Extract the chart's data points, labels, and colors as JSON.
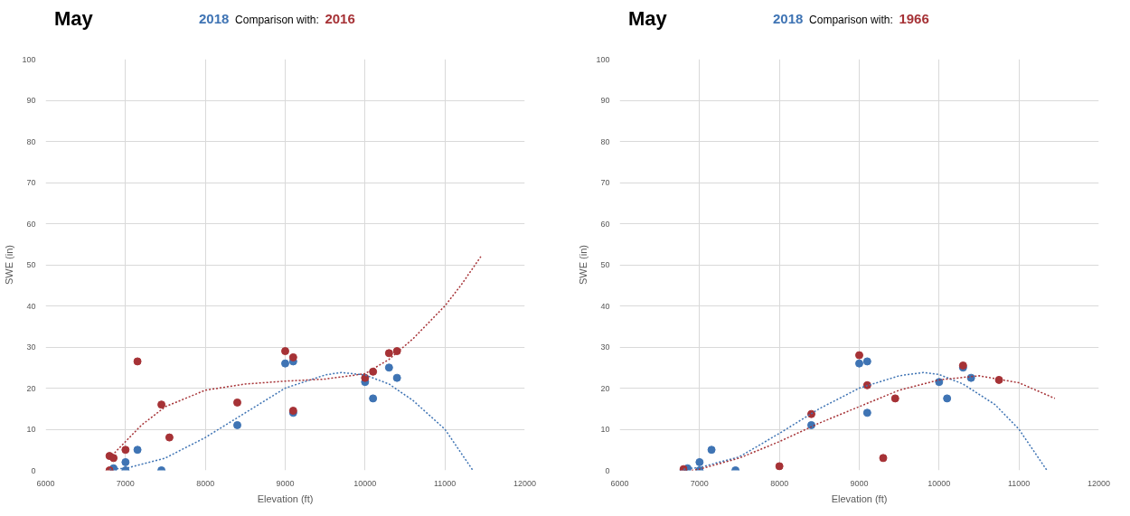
{
  "chart_data": [
    {
      "type": "scatter",
      "title": "May",
      "xlabel": "Elevation (ft)",
      "ylabel": "SWE (in)",
      "xlim": [
        6000,
        12000
      ],
      "xticks": [
        6000,
        7000,
        8000,
        9000,
        10000,
        11000,
        12000
      ],
      "ylim": [
        0,
        100
      ],
      "yticks": [
        0,
        10,
        20,
        30,
        40,
        50,
        60,
        70,
        80,
        90,
        100
      ],
      "grid": true,
      "legend": "top",
      "annotations": [
        "Comparison with:"
      ],
      "series": [
        {
          "name": "2018",
          "marker": "circle",
          "color": "#3f74b4",
          "x": [
            6850,
            7000,
            7000,
            7150,
            7450,
            8400,
            9000,
            9100,
            9100,
            10000,
            10100,
            10300,
            10400
          ],
          "values": [
            0.5,
            2,
            0,
            5,
            0,
            11,
            26,
            26.5,
            14,
            21.5,
            17.5,
            25,
            22.5
          ]
        },
        {
          "name": "2016",
          "marker": "circle",
          "color": "#a63236",
          "x": [
            6800,
            6850,
            6800,
            7000,
            7150,
            7450,
            7550,
            8400,
            9000,
            9100,
            9100,
            10000,
            10100,
            10300,
            10400
          ],
          "values": [
            3.5,
            3,
            0,
            5,
            26.5,
            16,
            8,
            16.5,
            29,
            27.5,
            14.5,
            22.5,
            24,
            28.5,
            29
          ]
        },
        {
          "type": "line",
          "line_style": "dotted",
          "color": "#3f74b4",
          "x": [
            6800,
            7000,
            7500,
            8000,
            8500,
            9000,
            9500,
            9700,
            10000,
            10300,
            10600,
            11000,
            11350
          ],
          "values": [
            0.3,
            0.5,
            3,
            8,
            14,
            20,
            23.2,
            23.8,
            23.2,
            21,
            17,
            10,
            0
          ]
        },
        {
          "type": "line",
          "line_style": "dotted",
          "color": "#a63236",
          "x": [
            6800,
            7000,
            7200,
            7500,
            8000,
            8500,
            9000,
            9500,
            10000,
            10300,
            10600,
            11000,
            11200,
            11450
          ],
          "values": [
            3,
            7,
            11,
            15.5,
            19.5,
            21,
            21.7,
            22.2,
            23.5,
            27,
            32,
            40,
            45,
            52
          ]
        }
      ]
    },
    {
      "type": "scatter",
      "title": "May",
      "xlabel": "Elevation (ft)",
      "ylabel": "SWE (in)",
      "xlim": [
        6000,
        12000
      ],
      "xticks": [
        6000,
        7000,
        8000,
        9000,
        10000,
        11000,
        12000
      ],
      "ylim": [
        0,
        100
      ],
      "yticks": [
        0,
        10,
        20,
        30,
        40,
        50,
        60,
        70,
        80,
        90,
        100
      ],
      "grid": true,
      "legend": "top",
      "annotations": [
        "Comparison with:"
      ],
      "series": [
        {
          "name": "2018",
          "marker": "circle",
          "color": "#3f74b4",
          "x": [
            6800,
            6850,
            7000,
            7000,
            7150,
            7450,
            8400,
            9000,
            9100,
            9100,
            10000,
            10100,
            10300,
            10400
          ],
          "values": [
            0,
            0.5,
            2,
            0,
            5,
            0,
            11,
            26,
            26.5,
            14,
            21.5,
            17.5,
            25,
            22.5
          ]
        },
        {
          "name": "1966",
          "marker": "circle",
          "color": "#a63236",
          "x": [
            6800,
            8000,
            8400,
            9000,
            9100,
            9300,
            9450,
            10300,
            10750
          ],
          "values": [
            0.3,
            1,
            13.7,
            28,
            20.7,
            3,
            17.5,
            25.5,
            22
          ]
        },
        {
          "type": "line",
          "line_style": "dotted",
          "color": "#3f74b4",
          "x": [
            6800,
            7000,
            7500,
            8000,
            8500,
            9000,
            9500,
            9800,
            10000,
            10300,
            10700,
            11000,
            11350
          ],
          "values": [
            0.3,
            0.7,
            3.3,
            9,
            15,
            20,
            23,
            23.8,
            23.3,
            21,
            16,
            10,
            0
          ]
        },
        {
          "type": "line",
          "line_style": "dotted",
          "color": "#a63236",
          "x": [
            6900,
            7000,
            7500,
            8000,
            8500,
            9000,
            9500,
            10000,
            10500,
            11000,
            11450
          ],
          "values": [
            0,
            0.3,
            3,
            7,
            11.5,
            15.5,
            19.5,
            22,
            23,
            21.3,
            17.5
          ]
        }
      ]
    }
  ]
}
